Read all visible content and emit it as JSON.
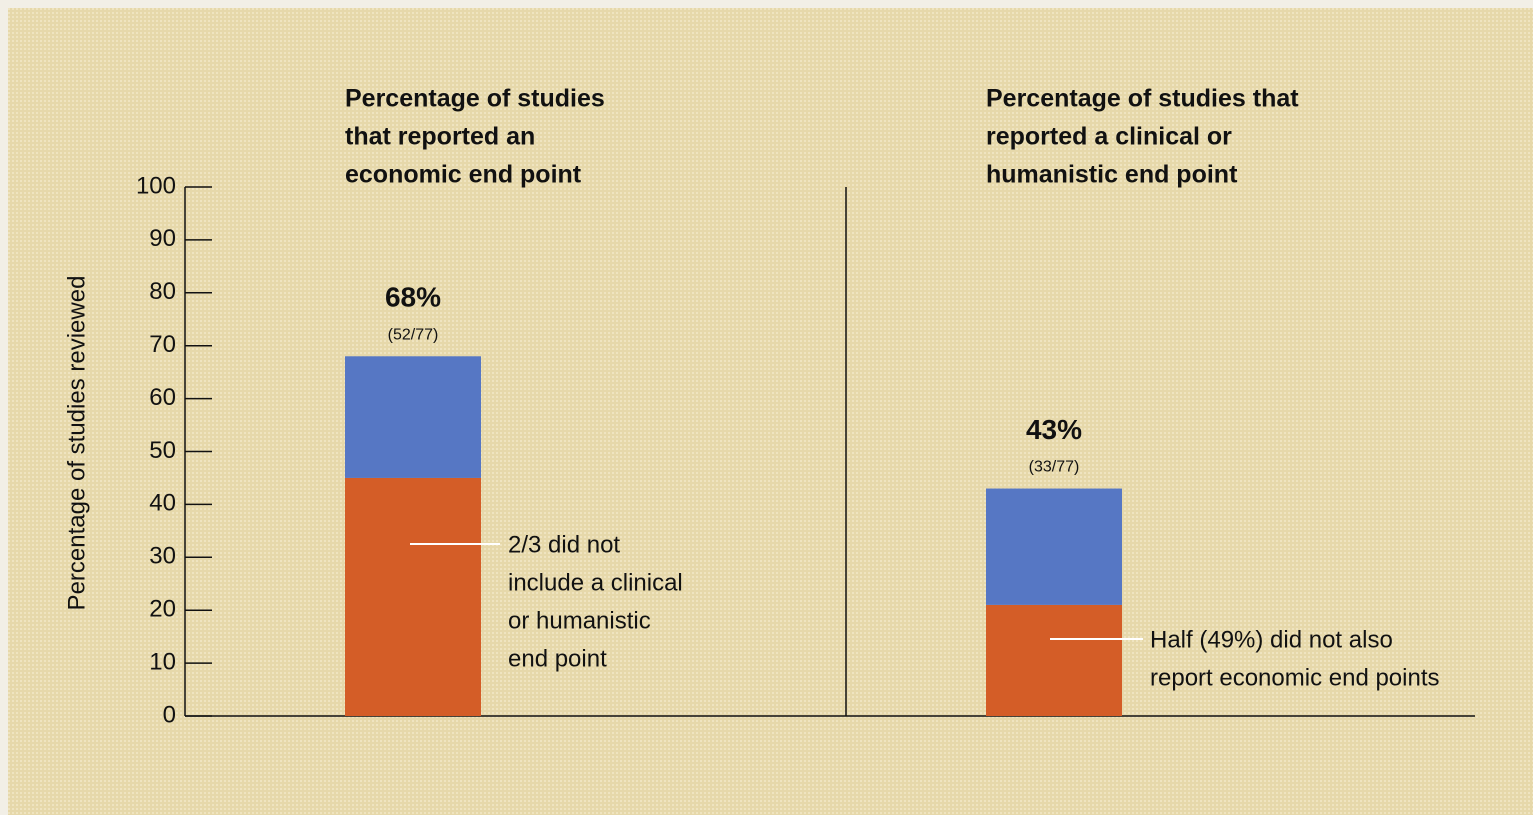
{
  "chart_data": {
    "type": "stacked_bar",
    "panel_titles": [
      [
        "Percentage of studies",
        "that reported an",
        "economic end point"
      ],
      [
        "Percentage of studies that",
        "reported a clinical or",
        "humanistic end point"
      ]
    ],
    "ylabel": "Percentage of studies reviewed",
    "categories": [
      null,
      null
    ],
    "series": [
      {
        "color": "#d45d27",
        "values": [
          45,
          21
        ]
      },
      {
        "color": "#5677c4",
        "values": [
          23,
          22
        ]
      }
    ],
    "totals": [
      68,
      43
    ],
    "total_labels": [
      "68%",
      "43%"
    ],
    "count_labels": [
      "(52/77)",
      "(33/77)"
    ],
    "annotations": [
      [
        "2/3 did not",
        "include a clinical",
        "or humanistic",
        "end point"
      ],
      [
        "Half (49%) did not also",
        "report economic end points"
      ]
    ],
    "ylim": [
      0,
      100
    ],
    "yticks": [
      0,
      10,
      20,
      30,
      40,
      50,
      60,
      70,
      80,
      90,
      100
    ]
  }
}
